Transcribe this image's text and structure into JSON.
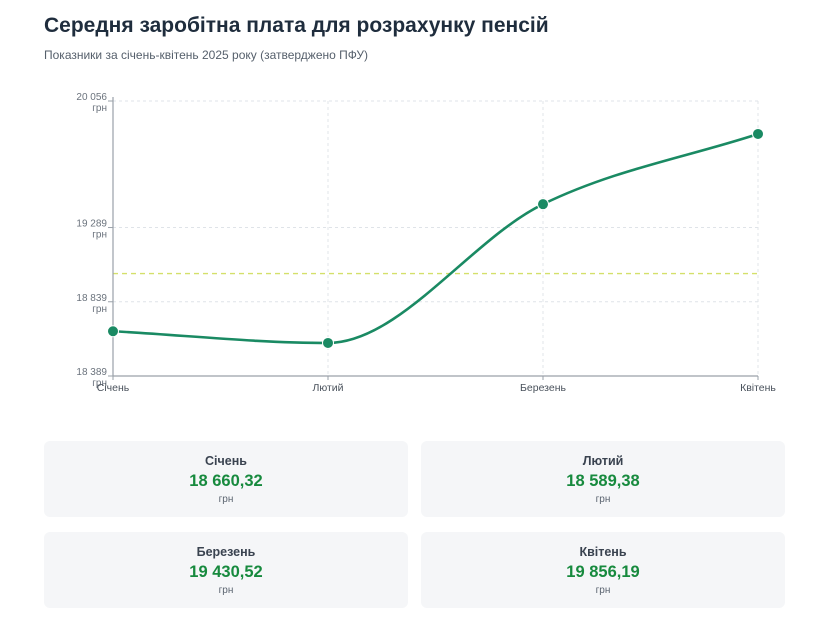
{
  "header": {
    "title": "Середня заробітна плата для розрахунку пенсій",
    "subtitle": "Показники за січень-квітень 2025 року (затверджено ПФУ)"
  },
  "chart_data": {
    "type": "line",
    "categories": [
      "Січень",
      "Лютий",
      "Березень",
      "Квітень"
    ],
    "values": [
      18660.32,
      18589.38,
      19430.52,
      19856.19
    ],
    "ylim": [
      18389,
      20056
    ],
    "y_ticks": [
      {
        "value": 20056,
        "label": "20 056"
      },
      {
        "value": 19289,
        "label": "19 289"
      },
      {
        "value": 18839,
        "label": "18 839"
      },
      {
        "value": 18389,
        "label": "18 389"
      }
    ],
    "y_unit": "грн",
    "reference_line": 19010,
    "grid": true,
    "line_color": "#1a8a63",
    "reference_color": "#d4e06a"
  },
  "cards": [
    {
      "month": "Січень",
      "value": "18 660,32",
      "unit": "грн"
    },
    {
      "month": "Лютий",
      "value": "18 589,38",
      "unit": "грн"
    },
    {
      "month": "Березень",
      "value": "19 430,52",
      "unit": "грн"
    },
    {
      "month": "Квітень",
      "value": "19 856,19",
      "unit": "грн"
    }
  ]
}
